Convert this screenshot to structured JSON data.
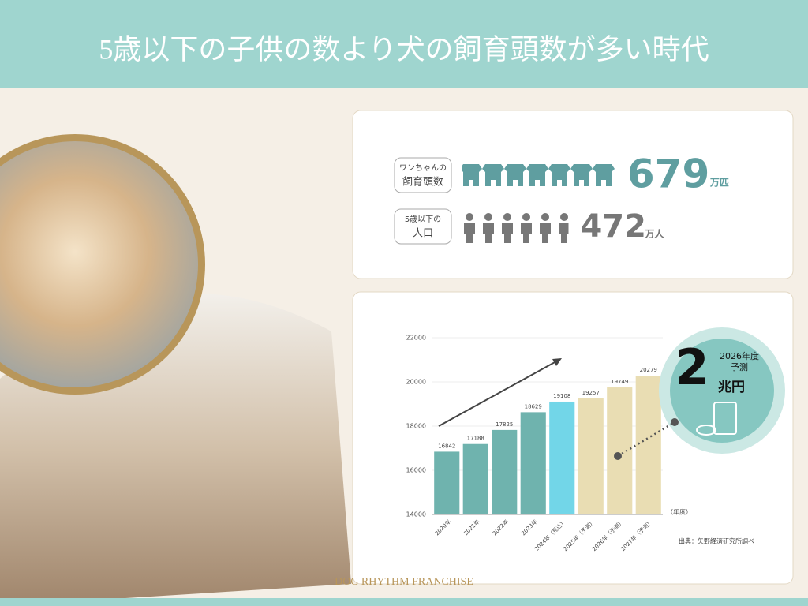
{
  "title": "5歳以下の子供の数より犬の飼育頭数が多い時代",
  "stats": [
    {
      "label_lines": [
        "ワンちゃんの",
        "飼育頭数"
      ],
      "value": 679,
      "unit": "万匹",
      "color": "#5f9ea0"
    },
    {
      "label_lines": [
        "5歳以下の",
        "人口"
      ],
      "value": 472,
      "unit": "万人",
      "color": "#777777"
    }
  ],
  "chart_data": {
    "type": "bar",
    "categories": [
      "2020年",
      "2021年",
      "2022年",
      "2023年",
      "2024年（見込）",
      "2025年（予測）",
      "2026年（予測）",
      "2027年（予測）"
    ],
    "values": [
      16842,
      17188,
      17825,
      18629,
      19108,
      19257,
      19749,
      20279
    ],
    "colors": [
      "#6fb3ae",
      "#6fb3ae",
      "#6fb3ae",
      "#6fb3ae",
      "#72d6e8",
      "#e9ddb3",
      "#e9ddb3",
      "#e9ddb3"
    ],
    "ylim": [
      14000,
      22000
    ],
    "yticks": [
      14000,
      16000,
      18000,
      20000,
      22000
    ],
    "grid": true,
    "x_unit": "（年度）",
    "source": "出典：矢野経済研究所調べ"
  },
  "callout": {
    "big": "2",
    "year_lines": [
      "2026年度",
      "予測"
    ],
    "unit": "兆円"
  },
  "footer": "DOG RHYTHM  FRANCHISE"
}
